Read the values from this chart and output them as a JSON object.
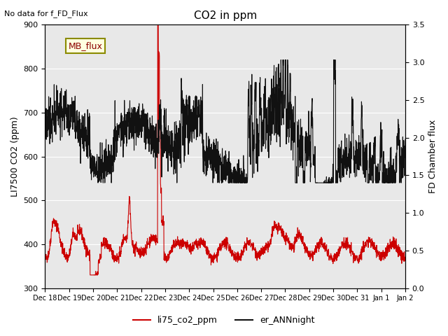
{
  "title": "CO2 in ppm",
  "top_left_text": "No data for f_FD_Flux",
  "ylabel_left": "LI7500 CO2 (ppm)",
  "ylabel_right": "FD Chamber flux",
  "ylim_left": [
    300,
    900
  ],
  "ylim_right": [
    0.0,
    3.5
  ],
  "bg_color": "#e8e8e8",
  "legend_label_red": "li75_co2_ppm",
  "legend_label_black": "er_ANNnight",
  "box_label": "MB_flux",
  "xtick_labels": [
    "Dec 18",
    "Dec 19",
    "Dec 20",
    "Dec 21",
    "Dec 22",
    "Dec 23",
    "Dec 24",
    "Dec 25",
    "Dec 26",
    "Dec 27",
    "Dec 28",
    "Dec 29",
    "Dec 30",
    "Dec 31",
    "Jan 1",
    "Jan 2"
  ],
  "red_line_color": "#cc0000",
  "black_line_color": "#111111",
  "right_axis_ticks": [
    0.0,
    0.5,
    1.0,
    1.5,
    2.0,
    2.5,
    3.0,
    3.5
  ],
  "right_axis_tick_labels": [
    "0.0",
    "0.5",
    "1.0",
    "1.5",
    "2.0",
    "2.5",
    "3.0",
    "3.5"
  ]
}
